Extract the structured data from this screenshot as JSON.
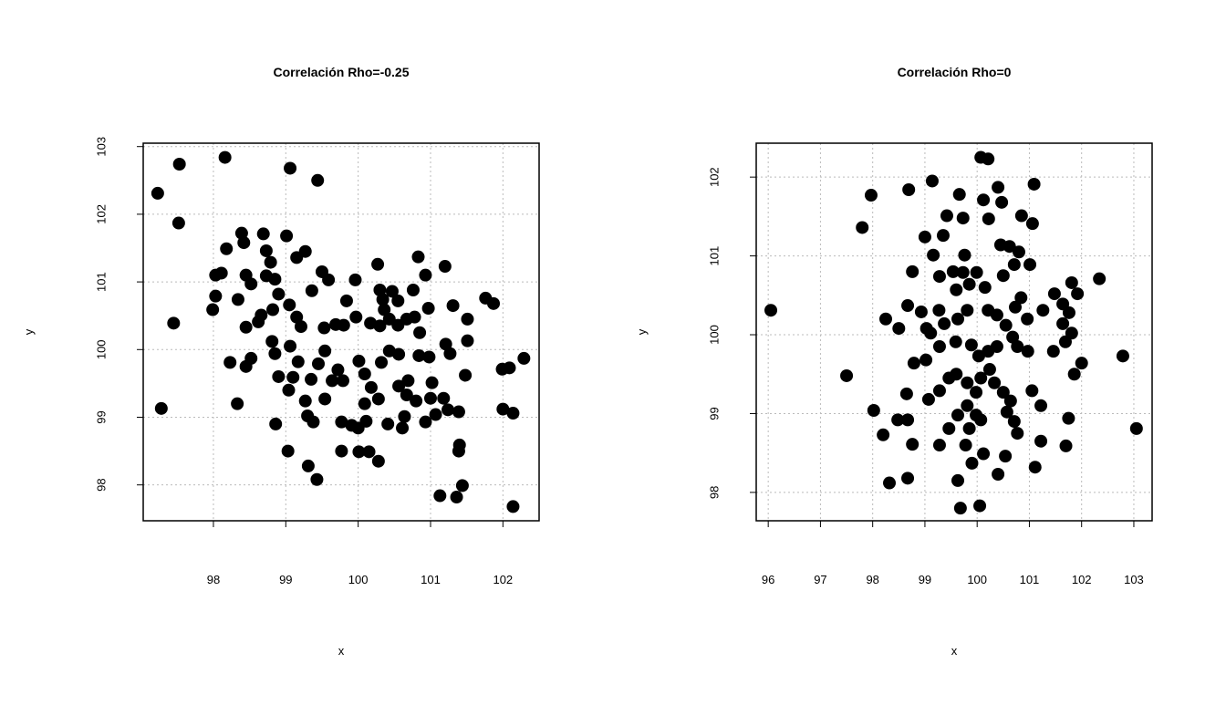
{
  "chart_data": [
    {
      "type": "scatter",
      "title": "Correlación Rho=-0.25",
      "xlabel": "x",
      "ylabel": "y",
      "color": "#000000",
      "grid": true,
      "xlim": [
        97.03,
        102.5
      ],
      "ylim": [
        97.47,
        103.05
      ],
      "xticks": [
        98,
        99,
        100,
        101,
        102
      ],
      "yticks": [
        98,
        99,
        100,
        101,
        102,
        103
      ],
      "x": [
        97.23,
        97.53,
        97.52,
        98.16,
        99.06,
        99.44,
        97.45,
        97.28,
        98.03,
        98.11,
        98.18,
        98.39,
        98.42,
        98.69,
        98.73,
        99.01,
        99.27,
        97.99,
        98.03,
        98.34,
        98.45,
        98.52,
        98.79,
        98.73,
        98.85,
        98.45,
        98.62,
        98.66,
        98.82,
        98.9,
        99.05,
        99.15,
        99.21,
        99.15,
        99.36,
        99.5,
        99.59,
        99.84,
        99.96,
        98.23,
        98.33,
        98.45,
        98.52,
        98.81,
        98.85,
        98.9,
        98.86,
        99.06,
        99.04,
        99.1,
        99.17,
        99.27,
        99.3,
        99.38,
        99.35,
        99.45,
        99.54,
        99.54,
        99.64,
        99.72,
        99.79,
        99.69,
        99.53,
        99.8,
        99.97,
        100.01,
        100.09,
        100.18,
        100.09,
        100.28,
        99.77,
        99.91,
        100.0,
        100.11,
        99.77,
        100.01,
        100.15,
        100.28,
        99.31,
        99.43,
        99.03,
        100.17,
        100.3,
        100.36,
        100.3,
        100.27,
        100.34,
        100.47,
        100.55,
        100.43,
        100.55,
        100.67,
        100.78,
        100.76,
        100.83,
        100.93,
        100.97,
        100.85,
        100.32,
        100.43,
        100.56,
        100.84,
        100.98,
        100.56,
        100.69,
        100.67,
        100.8,
        100.41,
        100.61,
        100.64,
        100.93,
        101.02,
        101.0,
        101.18,
        101.07,
        101.24,
        101.21,
        101.27,
        101.2,
        101.31,
        101.51,
        101.51,
        101.48,
        101.39,
        101.4,
        101.39,
        101.44,
        101.36,
        101.13,
        101.76,
        101.87,
        101.99,
        102.09,
        102.29,
        102.0,
        102.14,
        102.14
      ],
      "y": [
        102.31,
        102.74,
        101.87,
        102.84,
        102.68,
        102.5,
        100.39,
        99.13,
        101.1,
        101.13,
        101.49,
        101.72,
        101.58,
        101.71,
        101.46,
        101.68,
        101.45,
        100.59,
        100.79,
        100.74,
        101.1,
        100.97,
        101.29,
        101.09,
        101.04,
        100.33,
        100.41,
        100.51,
        100.59,
        100.82,
        100.66,
        100.48,
        100.34,
        101.36,
        100.87,
        101.15,
        101.03,
        100.72,
        101.03,
        99.81,
        99.2,
        99.75,
        99.87,
        100.12,
        99.94,
        99.6,
        98.9,
        100.05,
        99.4,
        99.59,
        99.82,
        99.24,
        99.02,
        98.93,
        99.56,
        99.79,
        99.98,
        99.27,
        99.54,
        99.7,
        99.54,
        100.37,
        100.32,
        100.36,
        100.48,
        99.83,
        99.64,
        99.44,
        99.2,
        99.27,
        98.93,
        98.88,
        98.84,
        98.94,
        98.5,
        98.49,
        98.49,
        98.35,
        98.28,
        98.08,
        98.5,
        100.39,
        100.35,
        100.59,
        100.88,
        101.26,
        100.74,
        100.86,
        100.72,
        100.45,
        100.36,
        100.45,
        100.48,
        100.88,
        101.37,
        101.1,
        100.61,
        100.25,
        99.81,
        99.98,
        99.93,
        99.91,
        99.89,
        99.46,
        99.54,
        99.33,
        99.24,
        98.9,
        98.84,
        99.01,
        98.93,
        99.51,
        99.28,
        99.28,
        99.04,
        99.11,
        100.08,
        99.94,
        101.23,
        100.65,
        100.45,
        100.13,
        99.62,
        99.08,
        98.59,
        98.5,
        97.99,
        97.82,
        97.84,
        100.76,
        100.68,
        99.71,
        99.73,
        99.87,
        99.12,
        99.06,
        97.68
      ]
    },
    {
      "type": "scatter",
      "title": "Correlación Rho=0",
      "xlabel": "x",
      "ylabel": "y",
      "color": "#000000",
      "grid": true,
      "xlim": [
        95.77,
        103.35
      ],
      "ylim": [
        97.64,
        102.43
      ],
      "xticks": [
        96,
        97,
        98,
        99,
        100,
        101,
        102,
        103
      ],
      "yticks": [
        98,
        99,
        100,
        101,
        102
      ],
      "x": [
        96.05,
        97.5,
        97.8,
        97.97,
        98.02,
        98.2,
        98.32,
        98.25,
        98.69,
        98.76,
        99.14,
        99.0,
        99.42,
        99.66,
        99.73,
        99.35,
        99.16,
        99.28,
        99.54,
        100.07,
        100.21,
        100.4,
        100.12,
        100.47,
        100.22,
        100.85,
        101.09,
        101.06,
        100.45,
        100.62,
        100.8,
        100.71,
        101.01,
        100.5,
        98.93,
        98.67,
        98.5,
        99.03,
        99.27,
        99.6,
        99.73,
        99.76,
        99.85,
        99.99,
        100.15,
        100.21,
        99.81,
        99.63,
        99.37,
        100.38,
        100.55,
        100.73,
        100.84,
        100.96,
        101.26,
        101.48,
        101.64,
        101.81,
        101.92,
        102.34,
        101.76,
        101.64,
        101.81,
        101.69,
        101.46,
        102.0,
        101.86,
        102.79,
        103.05,
        101.75,
        101.7,
        101.22,
        101.11,
        101.22,
        101.05,
        100.68,
        100.77,
        100.97,
        100.38,
        100.21,
        100.03,
        99.89,
        99.59,
        99.28,
        99.11,
        99.02,
        98.79,
        98.65,
        99.07,
        99.28,
        99.46,
        99.6,
        99.81,
        99.98,
        100.07,
        100.24,
        100.33,
        100.5,
        100.64,
        100.57,
        100.71,
        100.77,
        98.67,
        98.48,
        98.76,
        99.28,
        99.46,
        99.63,
        99.81,
        99.98,
        99.85,
        99.78,
        100.12,
        99.9,
        100.4,
        100.54,
        98.67,
        99.63,
        99.68,
        100.05,
        100.07
      ],
      "y": [
        100.31,
        99.48,
        101.36,
        101.77,
        99.04,
        98.73,
        98.12,
        100.2,
        101.84,
        100.8,
        101.95,
        101.24,
        101.51,
        101.78,
        101.48,
        101.26,
        101.01,
        100.74,
        100.8,
        102.25,
        102.23,
        101.87,
        101.71,
        101.68,
        101.47,
        101.51,
        101.91,
        101.41,
        101.14,
        101.12,
        101.05,
        100.89,
        100.89,
        100.75,
        100.29,
        100.37,
        100.08,
        100.08,
        100.31,
        100.57,
        100.79,
        101.01,
        100.64,
        100.79,
        100.6,
        100.31,
        100.31,
        100.2,
        100.14,
        100.25,
        100.12,
        100.35,
        100.47,
        100.2,
        100.31,
        100.52,
        100.39,
        100.66,
        100.52,
        100.71,
        100.28,
        100.14,
        100.02,
        99.91,
        99.79,
        99.64,
        99.5,
        99.73,
        98.81,
        98.94,
        98.59,
        98.65,
        98.32,
        99.1,
        99.29,
        99.97,
        99.85,
        99.79,
        99.85,
        99.79,
        99.73,
        99.87,
        99.91,
        99.85,
        100.02,
        99.68,
        99.64,
        99.25,
        99.18,
        99.29,
        99.45,
        99.5,
        99.39,
        99.27,
        99.45,
        99.56,
        99.39,
        99.27,
        99.16,
        99.02,
        98.9,
        98.75,
        98.92,
        98.92,
        98.61,
        98.6,
        98.81,
        98.98,
        99.1,
        98.98,
        98.81,
        98.6,
        98.49,
        98.37,
        98.23,
        98.46,
        98.18,
        98.15,
        97.8,
        97.83,
        98.92
      ]
    }
  ]
}
